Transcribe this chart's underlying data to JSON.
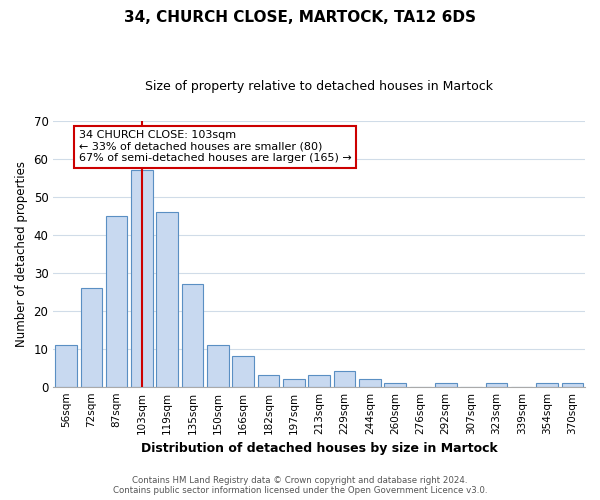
{
  "title": "34, CHURCH CLOSE, MARTOCK, TA12 6DS",
  "subtitle": "Size of property relative to detached houses in Martock",
  "xlabel": "Distribution of detached houses by size in Martock",
  "ylabel": "Number of detached properties",
  "bar_labels": [
    "56sqm",
    "72sqm",
    "87sqm",
    "103sqm",
    "119sqm",
    "135sqm",
    "150sqm",
    "166sqm",
    "182sqm",
    "197sqm",
    "213sqm",
    "229sqm",
    "244sqm",
    "260sqm",
    "276sqm",
    "292sqm",
    "307sqm",
    "323sqm",
    "339sqm",
    "354sqm",
    "370sqm"
  ],
  "bar_heights": [
    11,
    26,
    45,
    57,
    46,
    27,
    11,
    8,
    3,
    2,
    3,
    4,
    2,
    1,
    0,
    1,
    0,
    1,
    0,
    1,
    1
  ],
  "bar_color": "#c8d9f0",
  "bar_edge_color": "#5a8fc3",
  "vline_x_index": 3,
  "vline_color": "#cc0000",
  "ylim": [
    0,
    70
  ],
  "yticks": [
    0,
    10,
    20,
    30,
    40,
    50,
    60,
    70
  ],
  "annotation_title": "34 CHURCH CLOSE: 103sqm",
  "annotation_line1": "← 33% of detached houses are smaller (80)",
  "annotation_line2": "67% of semi-detached houses are larger (165) →",
  "annotation_box_color": "#ffffff",
  "annotation_box_edge": "#cc0000",
  "footer_line1": "Contains HM Land Registry data © Crown copyright and database right 2024.",
  "footer_line2": "Contains public sector information licensed under the Open Government Licence v3.0.",
  "background_color": "#ffffff",
  "grid_color": "#d0dce8"
}
